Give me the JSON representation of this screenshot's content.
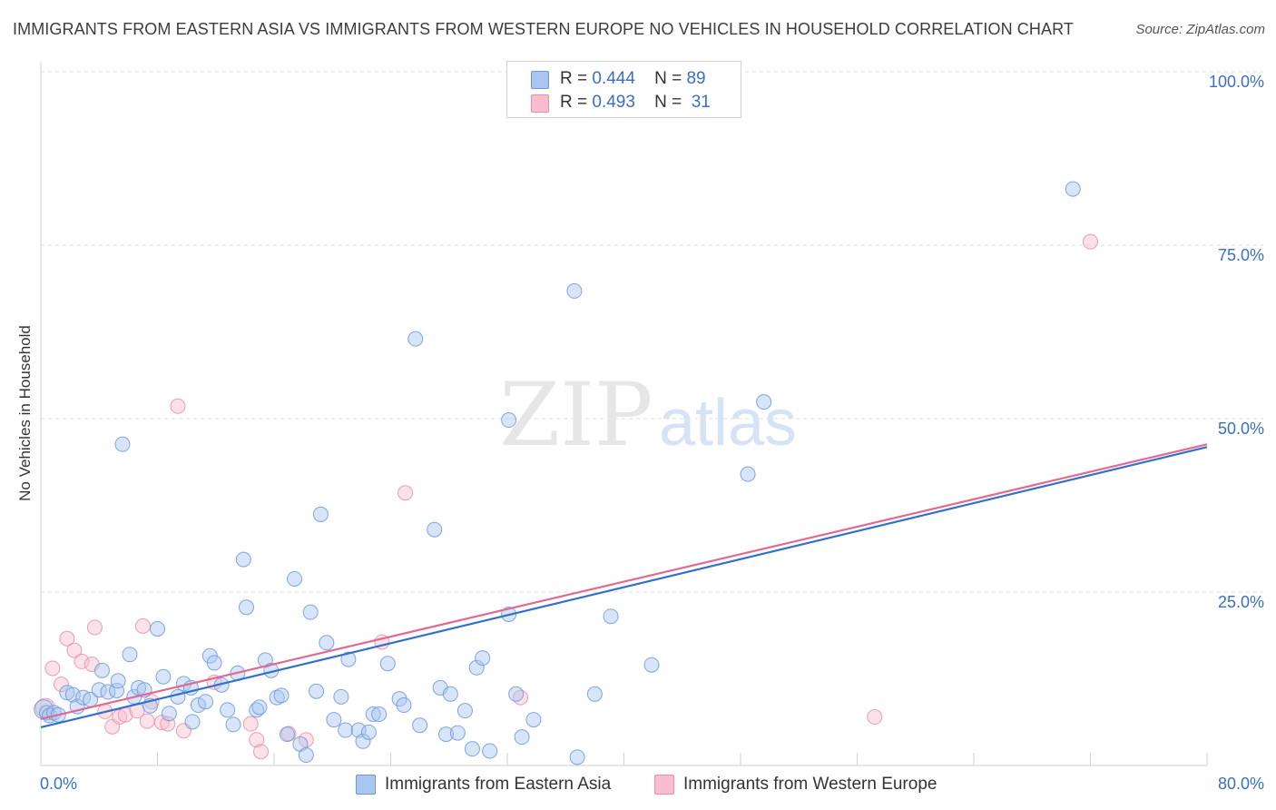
{
  "title": "IMMIGRANTS FROM EASTERN ASIA VS IMMIGRANTS FROM WESTERN EUROPE NO VEHICLES IN HOUSEHOLD CORRELATION CHART",
  "source": "Source: ZipAtlas.com",
  "watermark": {
    "zip": "ZIP",
    "atlas": "atlas"
  },
  "legend": {
    "rows": [
      {
        "r_label": "R =",
        "r_value": "0.444",
        "n_label": "N =",
        "n_value": "89"
      },
      {
        "r_label": "R =",
        "r_value": "0.493",
        "n_label": "N =",
        "n_value": "31"
      }
    ]
  },
  "colors": {
    "blue_fill": "#a9c6f0",
    "blue_stroke": "#6b98db",
    "blue_line": "#3370cc",
    "pink_fill": "#f7bccd",
    "pink_stroke": "#ea8eaa",
    "pink_line": "#e06a94",
    "axis_text": "#3a6fc4",
    "grid": "#dcdcdc"
  },
  "chart_data": {
    "type": "scatter",
    "title": "IMMIGRANTS FROM EASTERN ASIA VS IMMIGRANTS FROM WESTERN EUROPE NO VEHICLES IN HOUSEHOLD CORRELATION CHART",
    "xlabel": "",
    "ylabel": "No Vehicles in Household",
    "xlim": [
      0,
      80
    ],
    "ylim": [
      0,
      100
    ],
    "x_tick_labels": [
      "0.0%",
      "80.0%"
    ],
    "y_tick_labels": [
      "100.0%",
      "75.0%",
      "50.0%",
      "25.0%"
    ],
    "y_ticks": [
      100,
      75,
      50,
      25
    ],
    "grid": true,
    "legend_position": "top-center",
    "series": [
      {
        "name": "Immigrants from Eastern Asia",
        "color": "#a9c6f0",
        "r": 0.444,
        "n": 89,
        "trend": {
          "x0": 0,
          "y0": 5.5,
          "x1": 80,
          "y1": 45.9
        },
        "points": [
          [
            0.2,
            8.1
          ],
          [
            0.4,
            7.6
          ],
          [
            0.6,
            7.2
          ],
          [
            0.9,
            7.6
          ],
          [
            1.2,
            7.3
          ],
          [
            1.8,
            10.5
          ],
          [
            2.2,
            10.2
          ],
          [
            2.5,
            8.5
          ],
          [
            2.9,
            9.8
          ],
          [
            3.4,
            9.5
          ],
          [
            4.0,
            10.9
          ],
          [
            4.2,
            13.7
          ],
          [
            4.6,
            10.6
          ],
          [
            5.2,
            10.8
          ],
          [
            5.3,
            12.2
          ],
          [
            5.6,
            46.3
          ],
          [
            6.1,
            16.0
          ],
          [
            6.4,
            9.9
          ],
          [
            6.7,
            11.2
          ],
          [
            7.1,
            10.9
          ],
          [
            7.5,
            8.6
          ],
          [
            8.0,
            19.7
          ],
          [
            8.4,
            12.8
          ],
          [
            8.8,
            7.5
          ],
          [
            9.4,
            9.9
          ],
          [
            9.8,
            11.8
          ],
          [
            10.3,
            11.2
          ],
          [
            10.4,
            6.3
          ],
          [
            10.8,
            8.7
          ],
          [
            11.3,
            9.2
          ],
          [
            11.6,
            15.8
          ],
          [
            11.9,
            14.8
          ],
          [
            12.4,
            11.6
          ],
          [
            12.8,
            8.0
          ],
          [
            13.2,
            5.9
          ],
          [
            13.5,
            13.3
          ],
          [
            13.9,
            29.7
          ],
          [
            14.1,
            22.8
          ],
          [
            14.8,
            8.0
          ],
          [
            15.0,
            8.4
          ],
          [
            15.4,
            15.2
          ],
          [
            15.8,
            13.7
          ],
          [
            16.2,
            9.8
          ],
          [
            16.5,
            10.1
          ],
          [
            16.9,
            4.5
          ],
          [
            17.4,
            26.9
          ],
          [
            17.8,
            3.1
          ],
          [
            18.2,
            1.5
          ],
          [
            18.5,
            22.1
          ],
          [
            18.9,
            10.7
          ],
          [
            19.2,
            36.2
          ],
          [
            19.6,
            17.7
          ],
          [
            20.1,
            6.6
          ],
          [
            20.6,
            9.9
          ],
          [
            20.9,
            5.1
          ],
          [
            21.1,
            15.3
          ],
          [
            21.8,
            5.1
          ],
          [
            22.1,
            3.5
          ],
          [
            22.5,
            4.8
          ],
          [
            22.8,
            7.4
          ],
          [
            23.2,
            7.4
          ],
          [
            23.8,
            14.7
          ],
          [
            24.6,
            9.6
          ],
          [
            24.9,
            8.7
          ],
          [
            25.7,
            61.5
          ],
          [
            26.0,
            5.8
          ],
          [
            27.0,
            34.0
          ],
          [
            27.4,
            11.2
          ],
          [
            27.8,
            4.5
          ],
          [
            28.1,
            10.3
          ],
          [
            28.6,
            4.7
          ],
          [
            29.1,
            7.9
          ],
          [
            29.6,
            2.4
          ],
          [
            29.9,
            14.1
          ],
          [
            30.3,
            15.5
          ],
          [
            30.8,
            2.1
          ],
          [
            32.1,
            21.8
          ],
          [
            32.1,
            49.8
          ],
          [
            32.6,
            10.3
          ],
          [
            33.0,
            4.1
          ],
          [
            33.8,
            6.6
          ],
          [
            36.6,
            68.4
          ],
          [
            36.8,
            1.2
          ],
          [
            38.0,
            10.3
          ],
          [
            39.1,
            21.5
          ],
          [
            41.9,
            14.5
          ],
          [
            48.5,
            42.0
          ],
          [
            49.6,
            52.4
          ],
          [
            70.8,
            83.1
          ]
        ]
      },
      {
        "name": "Immigrants from Western Europe",
        "color": "#f7bccd",
        "r": 0.493,
        "n": 31,
        "trend": {
          "x0": 0,
          "y0": 6.7,
          "x1": 80,
          "y1": 46.3
        },
        "points": [
          [
            0.3,
            8.3
          ],
          [
            0.8,
            14.0
          ],
          [
            1.4,
            11.7
          ],
          [
            1.8,
            18.3
          ],
          [
            2.3,
            16.6
          ],
          [
            2.8,
            15.0
          ],
          [
            3.5,
            14.6
          ],
          [
            3.7,
            19.9
          ],
          [
            4.4,
            7.8
          ],
          [
            4.9,
            5.6
          ],
          [
            5.4,
            7.0
          ],
          [
            5.8,
            7.3
          ],
          [
            6.6,
            7.9
          ],
          [
            7.0,
            20.1
          ],
          [
            7.3,
            6.4
          ],
          [
            7.6,
            9.2
          ],
          [
            8.3,
            6.2
          ],
          [
            8.7,
            6.0
          ],
          [
            9.4,
            51.8
          ],
          [
            9.8,
            5.0
          ],
          [
            11.9,
            12.0
          ],
          [
            14.4,
            6.0
          ],
          [
            14.8,
            3.7
          ],
          [
            15.1,
            2.0
          ],
          [
            17.0,
            4.6
          ],
          [
            18.2,
            3.7
          ],
          [
            23.4,
            17.8
          ],
          [
            25.0,
            39.3
          ],
          [
            32.9,
            9.8
          ],
          [
            57.2,
            7.0
          ],
          [
            72.0,
            75.5
          ]
        ]
      }
    ]
  },
  "bottom_legend": {
    "items": [
      {
        "label": "Immigrants from Eastern Asia"
      },
      {
        "label": "Immigrants from Western Europe"
      }
    ]
  }
}
